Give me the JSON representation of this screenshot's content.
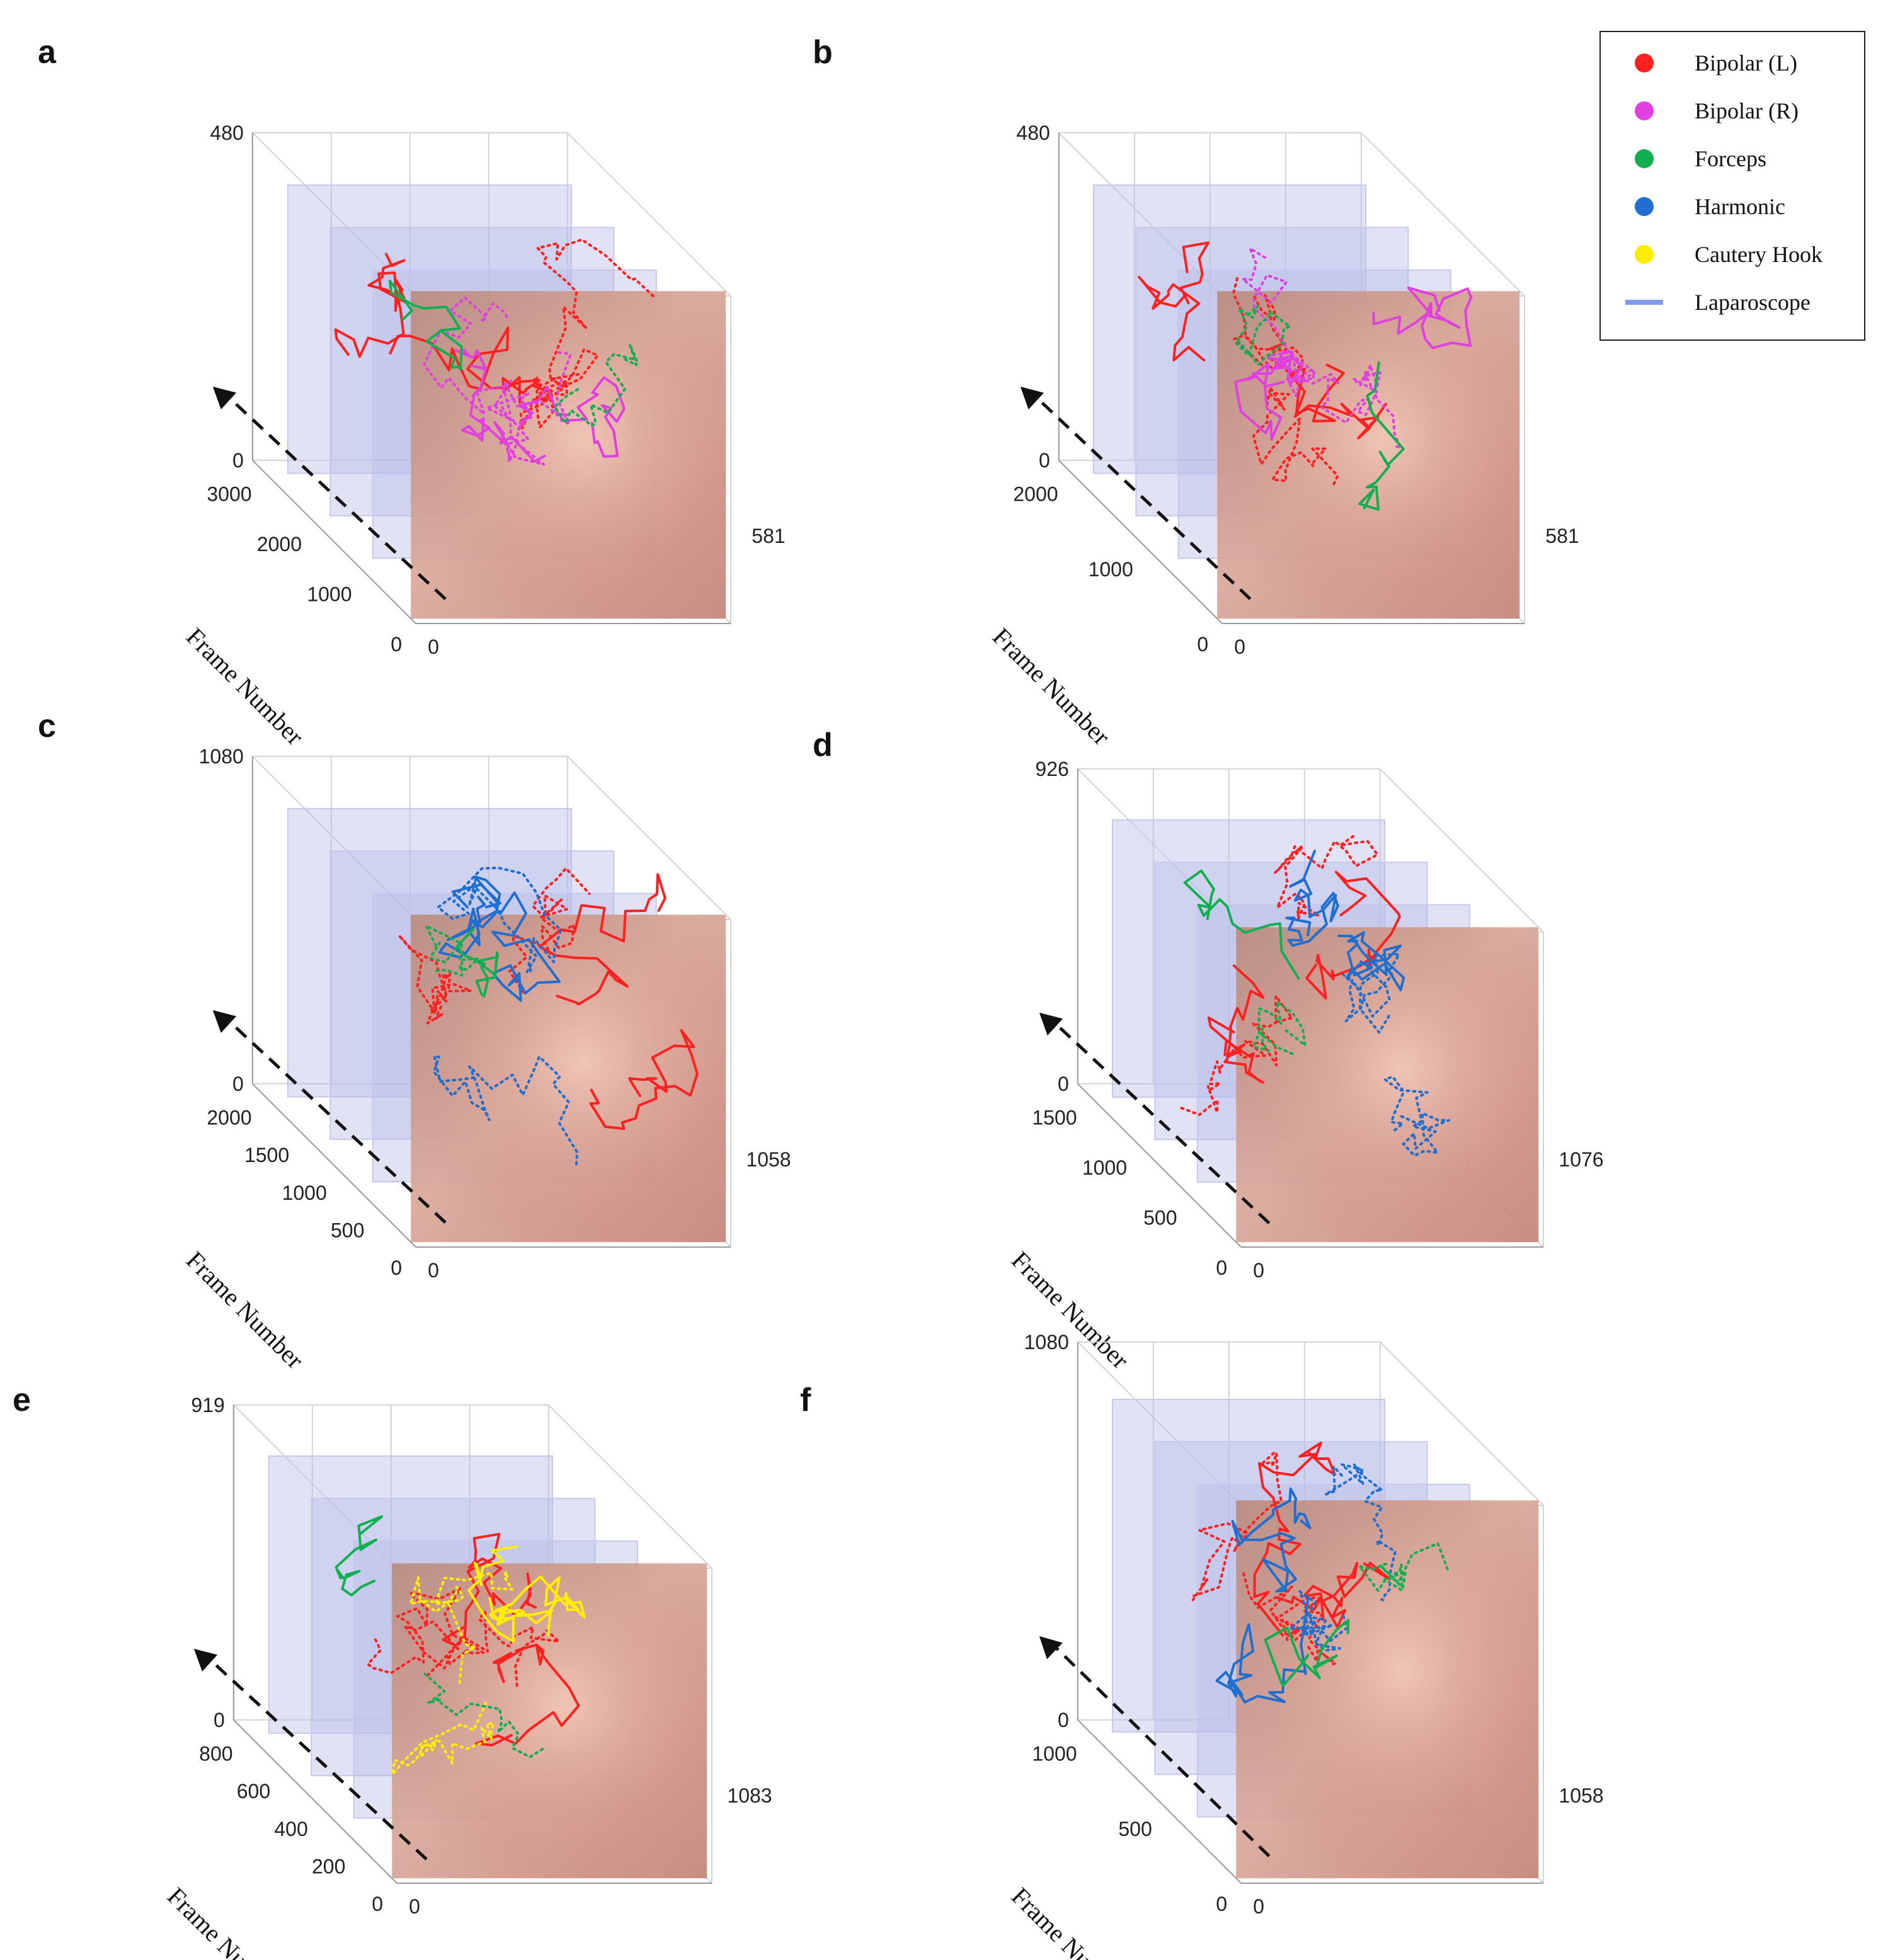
{
  "figure": {
    "legend": {
      "items": [
        {
          "label": "Bipolar (L)",
          "color": "#ff2020",
          "marker": "dot"
        },
        {
          "label": "Bipolar (R)",
          "color": "#e040e0",
          "marker": "dot"
        },
        {
          "label": "Forceps",
          "color": "#10b050",
          "marker": "dot"
        },
        {
          "label": "Harmonic",
          "color": "#1f6fd0",
          "marker": "dot"
        },
        {
          "label": "Cautery Hook",
          "color": "#ffee00",
          "marker": "dot"
        },
        {
          "label": "Laparoscope",
          "color": "#7f9bf0",
          "marker": "line"
        }
      ]
    }
  },
  "chart_data": [
    {
      "type": "scatter",
      "panel": "a",
      "xlabel": "",
      "ylabel": "Frame Number",
      "xlim": [
        0,
        581
      ],
      "ylim": [
        0,
        3000
      ],
      "zlim": [
        0,
        480
      ],
      "x_ticks": [
        "0",
        "581"
      ],
      "y_ticks": [
        "0",
        "1000",
        "2000",
        "3000"
      ],
      "z_ticks": [
        "0",
        "480"
      ],
      "series": [
        "Bipolar (L)",
        "Bipolar (R)",
        "Forceps"
      ]
    },
    {
      "type": "scatter",
      "panel": "b",
      "xlabel": "",
      "ylabel": "Frame Number",
      "xlim": [
        0,
        581
      ],
      "ylim": [
        0,
        2000
      ],
      "zlim": [
        0,
        480
      ],
      "x_ticks": [
        "0",
        "581"
      ],
      "y_ticks": [
        "0",
        "1000",
        "2000"
      ],
      "z_ticks": [
        "0",
        "480"
      ],
      "series": [
        "Bipolar (L)",
        "Bipolar (R)",
        "Forceps"
      ]
    },
    {
      "type": "scatter",
      "panel": "c",
      "xlabel": "",
      "ylabel": "Frame Number",
      "xlim": [
        0,
        1058
      ],
      "ylim": [
        0,
        2000
      ],
      "zlim": [
        0,
        1080
      ],
      "x_ticks": [
        "0",
        "1058"
      ],
      "y_ticks": [
        "0",
        "500",
        "1000",
        "1500",
        "2000"
      ],
      "z_ticks": [
        "0",
        "1080"
      ],
      "series": [
        "Bipolar (L)",
        "Harmonic",
        "Forceps"
      ]
    },
    {
      "type": "scatter",
      "panel": "d",
      "xlabel": "",
      "ylabel": "Frame Number",
      "xlim": [
        0,
        1076
      ],
      "ylim": [
        0,
        1500
      ],
      "zlim": [
        0,
        926
      ],
      "x_ticks": [
        "0",
        "1076"
      ],
      "y_ticks": [
        "0",
        "500",
        "1000",
        "1500"
      ],
      "z_ticks": [
        "0",
        "926"
      ],
      "series": [
        "Bipolar (L)",
        "Harmonic",
        "Forceps"
      ]
    },
    {
      "type": "scatter",
      "panel": "e",
      "xlabel": "",
      "ylabel": "Frame Number",
      "xlim": [
        0,
        1083
      ],
      "ylim": [
        0,
        800
      ],
      "zlim": [
        0,
        919
      ],
      "x_ticks": [
        "0",
        "1083"
      ],
      "y_ticks": [
        "0",
        "200",
        "400",
        "600",
        "800"
      ],
      "z_ticks": [
        "0",
        "919"
      ],
      "series": [
        "Bipolar (L)",
        "Cautery Hook",
        "Forceps"
      ]
    },
    {
      "type": "scatter",
      "panel": "f",
      "xlabel": "",
      "ylabel": "Frame Number",
      "xlim": [
        0,
        1058
      ],
      "ylim": [
        0,
        1000
      ],
      "zlim": [
        0,
        1080
      ],
      "x_ticks": [
        "0",
        "1058"
      ],
      "y_ticks": [
        "0",
        "500",
        "1000"
      ],
      "z_ticks": [
        "0",
        "1080"
      ],
      "series": [
        "Bipolar (L)",
        "Harmonic",
        "Forceps"
      ]
    }
  ]
}
